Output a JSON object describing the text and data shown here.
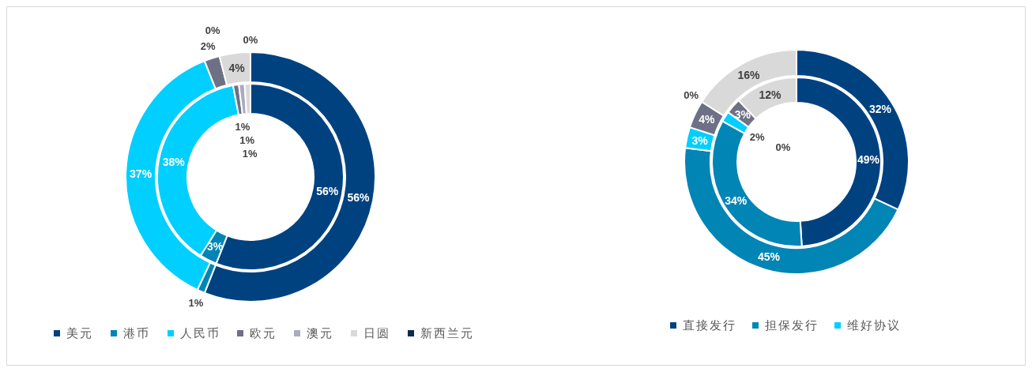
{
  "chart_data": [
    {
      "type": "donut",
      "categories": [
        "美元",
        "港币",
        "人民币",
        "欧元",
        "澳元",
        "日圆",
        "新西兰元"
      ],
      "colors": [
        "#004280",
        "#0085b5",
        "#00cfff",
        "#6e7085",
        "#a9abbf",
        "#d9d9d9",
        "#0a2b4f"
      ],
      "legend": "bottom",
      "series": [
        {
          "values": [
            56,
            3,
            38,
            1,
            1,
            1,
            0
          ],
          "value_labels": [
            "56%",
            "3%",
            "38%",
            "1%",
            "1%",
            "1%",
            null
          ]
        },
        {
          "values": [
            56,
            1,
            37,
            2,
            0,
            4,
            0
          ],
          "value_labels": [
            "56%",
            "1%",
            "37%",
            "2%",
            "0%",
            "4%",
            "0%"
          ]
        }
      ]
    },
    {
      "type": "donut",
      "categories": [
        "直接发行",
        "担保发行",
        "维好协议",
        null,
        null,
        null
      ],
      "colors": [
        "#004280",
        "#0085b5",
        "#00cfff",
        "#6e7085",
        "#a9abbf",
        "#d9d9d9"
      ],
      "legend": "bottom",
      "series": [
        {
          "values": [
            49,
            34,
            2,
            3,
            0,
            12
          ],
          "value_labels": [
            "49%",
            "34%",
            "2%",
            "3%",
            "0%",
            "12%"
          ]
        },
        {
          "values": [
            32,
            45,
            3,
            4,
            0,
            16
          ],
          "value_labels": [
            "32%",
            "45%",
            "3%",
            "4%",
            "0%",
            "16%"
          ]
        }
      ]
    }
  ]
}
